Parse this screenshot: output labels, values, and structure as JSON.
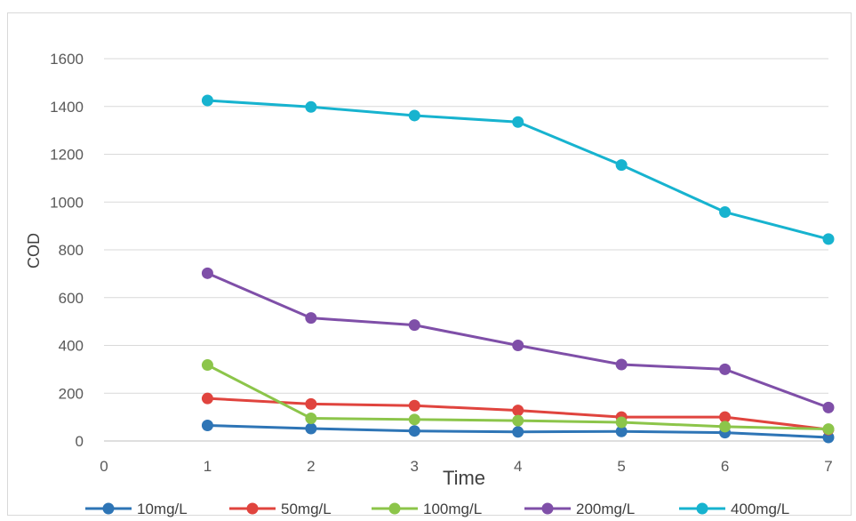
{
  "chart_data": {
    "type": "line",
    "xlabel": "Time",
    "ylabel": "COD",
    "xlim": [
      0,
      7
    ],
    "ylim": [
      0,
      1600
    ],
    "x_ticks": [
      "0",
      "1",
      "2",
      "3",
      "4",
      "5",
      "6",
      "7"
    ],
    "y_ticks": [
      "0",
      "200",
      "400",
      "600",
      "800",
      "1000",
      "1200",
      "1400",
      "1600"
    ],
    "grid": "horizontal",
    "legend_position": "bottom",
    "x": [
      1,
      2,
      3,
      4,
      5,
      6,
      7
    ],
    "series": [
      {
        "name": "10mg/L",
        "color": "#2e75b6",
        "values": [
          65,
          52,
          42,
          38,
          40,
          35,
          15
        ]
      },
      {
        "name": "50mg/L",
        "color": "#e0443e",
        "values": [
          178,
          155,
          148,
          128,
          100,
          100,
          48
        ]
      },
      {
        "name": "100mg/L",
        "color": "#8cc54a",
        "values": [
          318,
          95,
          90,
          85,
          78,
          60,
          50
        ]
      },
      {
        "name": "200mg/L",
        "color": "#7f4fa8",
        "values": [
          702,
          515,
          485,
          400,
          320,
          300,
          140
        ]
      },
      {
        "name": "400mg/L",
        "color": "#17b3cf",
        "values": [
          1425,
          1398,
          1362,
          1335,
          1155,
          958,
          845
        ]
      }
    ]
  }
}
